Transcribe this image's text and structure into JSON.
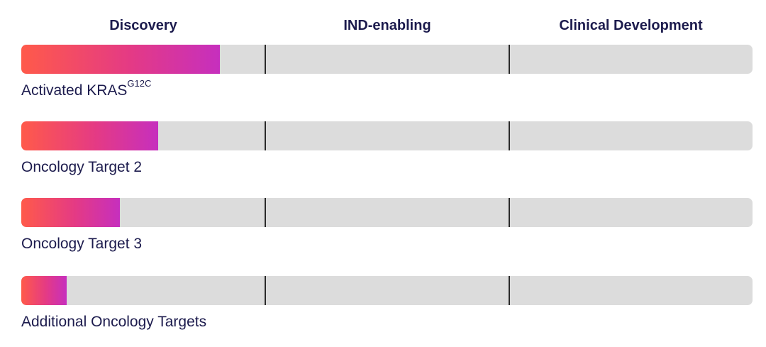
{
  "chart_data": {
    "type": "bar",
    "orientation": "horizontal",
    "phases": [
      "Discovery",
      "IND-enabling",
      "Clinical Development"
    ],
    "categories": [
      {
        "name": "Activated KRAS",
        "superscript": "G12C"
      },
      {
        "name": "Oncology Target 2",
        "superscript": ""
      },
      {
        "name": "Oncology Target 3",
        "superscript": ""
      },
      {
        "name": "Additional Oncology Targets",
        "superscript": ""
      }
    ],
    "values": [
      0.815,
      0.56,
      0.405,
      0.185
    ],
    "value_unit": "fraction of Discovery phase completed",
    "colors": {
      "fill_start": "#ff5a4a",
      "fill_mid": "#e43a85",
      "fill_end": "#c62fbe",
      "track": "#dcdcdc",
      "divider": "#2a2a2a",
      "text": "#1c1b4d"
    }
  }
}
